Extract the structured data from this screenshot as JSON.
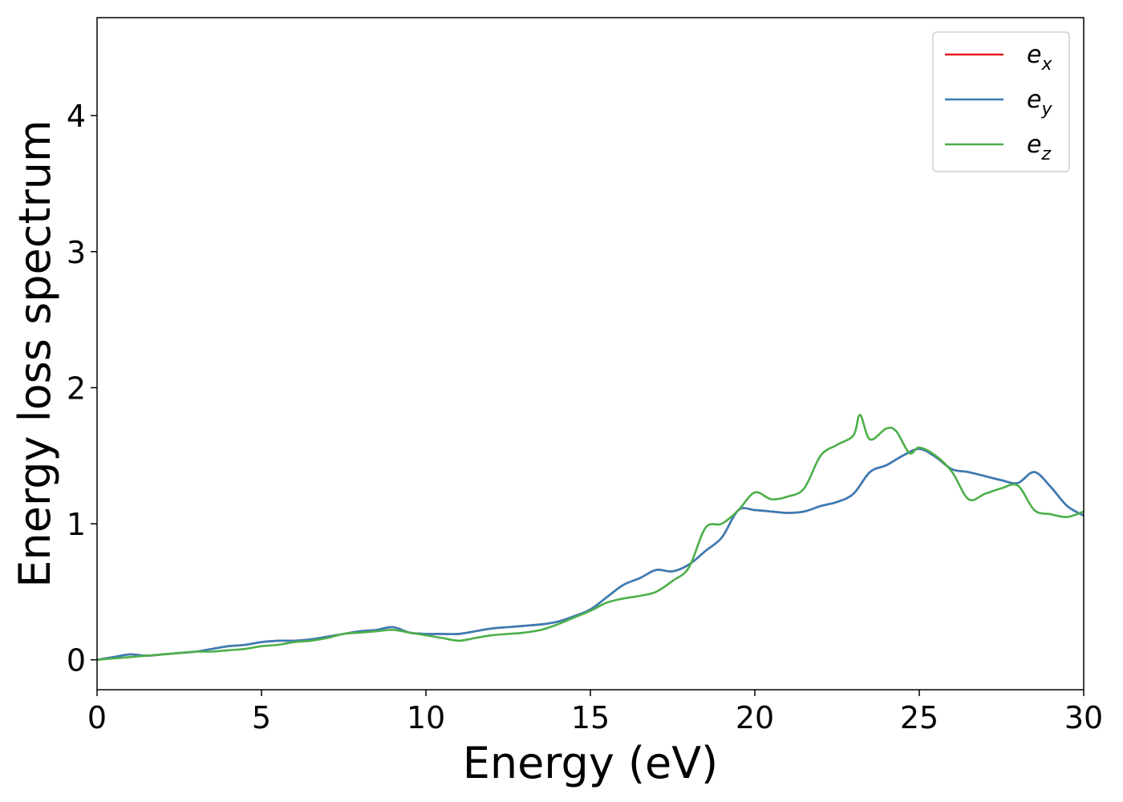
{
  "chart_data": {
    "type": "line",
    "xlabel": "Energy (eV)",
    "ylabel": "Energy loss spectrum",
    "xlim": [
      0,
      30
    ],
    "ylim": [
      -0.22,
      4.72
    ],
    "xticks": [
      0,
      5,
      10,
      15,
      20,
      25,
      30
    ],
    "yticks": [
      0,
      1,
      2,
      3,
      4
    ],
    "grid": false,
    "legend_position": "top-right",
    "series": [
      {
        "name": "e_x",
        "legend_base": "e",
        "legend_sub": "x",
        "color": "#e41a1c",
        "x": [
          0,
          0.5,
          1,
          1.5,
          2,
          2.5,
          3,
          3.5,
          4,
          4.5,
          5,
          5.5,
          6,
          6.5,
          7,
          7.5,
          8,
          8.5,
          9,
          9.5,
          10,
          10.5,
          11,
          11.5,
          12,
          12.5,
          13,
          13.5,
          14,
          14.5,
          15,
          15.5,
          16,
          16.5,
          17,
          17.5,
          18,
          18.5,
          19,
          19.5,
          20,
          20.5,
          21,
          21.5,
          22,
          22.5,
          23,
          23.5,
          24,
          24.5,
          25,
          25.5,
          26,
          26.5,
          27,
          27.5,
          28,
          28.5,
          29,
          29.5,
          30
        ],
        "values": [
          0,
          0.02,
          0.04,
          0.03,
          0.04,
          0.05,
          0.06,
          0.08,
          0.1,
          0.11,
          0.13,
          0.14,
          0.14,
          0.15,
          0.17,
          0.19,
          0.21,
          0.22,
          0.24,
          0.2,
          0.19,
          0.19,
          0.19,
          0.21,
          0.23,
          0.24,
          0.25,
          0.26,
          0.28,
          0.32,
          0.37,
          0.46,
          0.55,
          0.6,
          0.66,
          0.65,
          0.7,
          0.8,
          0.9,
          1.1,
          1.1,
          1.09,
          1.08,
          1.09,
          1.13,
          1.16,
          1.22,
          1.38,
          1.43,
          1.5,
          1.55,
          1.49,
          1.4,
          1.38,
          1.35,
          1.32,
          1.3,
          1.38,
          1.27,
          1.13,
          1.06
        ]
      },
      {
        "name": "e_y",
        "legend_base": "e",
        "legend_sub": "y",
        "color": "#377eb8",
        "x": [
          0,
          0.5,
          1,
          1.5,
          2,
          2.5,
          3,
          3.5,
          4,
          4.5,
          5,
          5.5,
          6,
          6.5,
          7,
          7.5,
          8,
          8.5,
          9,
          9.5,
          10,
          10.5,
          11,
          11.5,
          12,
          12.5,
          13,
          13.5,
          14,
          14.5,
          15,
          15.5,
          16,
          16.5,
          17,
          17.5,
          18,
          18.5,
          19,
          19.5,
          20,
          20.5,
          21,
          21.5,
          22,
          22.5,
          23,
          23.5,
          24,
          24.5,
          25,
          25.5,
          26,
          26.5,
          27,
          27.5,
          28,
          28.5,
          29,
          29.5,
          30
        ],
        "values": [
          0,
          0.02,
          0.04,
          0.03,
          0.04,
          0.05,
          0.06,
          0.08,
          0.1,
          0.11,
          0.13,
          0.14,
          0.14,
          0.15,
          0.17,
          0.19,
          0.21,
          0.22,
          0.24,
          0.2,
          0.19,
          0.19,
          0.19,
          0.21,
          0.23,
          0.24,
          0.25,
          0.26,
          0.28,
          0.32,
          0.37,
          0.46,
          0.55,
          0.6,
          0.66,
          0.65,
          0.7,
          0.8,
          0.9,
          1.1,
          1.1,
          1.09,
          1.08,
          1.09,
          1.13,
          1.16,
          1.22,
          1.38,
          1.43,
          1.5,
          1.55,
          1.49,
          1.4,
          1.38,
          1.35,
          1.32,
          1.3,
          1.38,
          1.27,
          1.13,
          1.06
        ]
      },
      {
        "name": "e_z",
        "legend_base": "e",
        "legend_sub": "z",
        "color": "#4daf4a",
        "x": [
          0,
          0.5,
          1,
          1.5,
          2,
          2.5,
          3,
          3.5,
          4,
          4.5,
          5,
          5.5,
          6,
          6.5,
          7,
          7.5,
          8,
          8.5,
          9,
          9.5,
          10,
          10.5,
          11,
          11.5,
          12,
          12.5,
          13,
          13.5,
          14,
          14.5,
          15,
          15.5,
          16,
          16.5,
          17,
          17.5,
          18,
          18.5,
          19,
          19.5,
          20,
          20.5,
          21,
          21.5,
          22,
          22.5,
          23,
          23.2,
          23.5,
          24,
          24.3,
          24.7,
          25,
          25.5,
          26,
          26.5,
          27,
          27.5,
          28,
          28.5,
          29,
          29.5,
          30
        ],
        "values": [
          0,
          0.01,
          0.02,
          0.03,
          0.04,
          0.05,
          0.06,
          0.06,
          0.07,
          0.08,
          0.1,
          0.11,
          0.13,
          0.14,
          0.16,
          0.19,
          0.2,
          0.21,
          0.22,
          0.2,
          0.18,
          0.16,
          0.14,
          0.16,
          0.18,
          0.19,
          0.2,
          0.22,
          0.26,
          0.31,
          0.36,
          0.42,
          0.45,
          0.47,
          0.5,
          0.58,
          0.68,
          0.97,
          1.0,
          1.1,
          1.23,
          1.18,
          1.2,
          1.26,
          1.5,
          1.58,
          1.65,
          1.8,
          1.62,
          1.7,
          1.68,
          1.52,
          1.56,
          1.5,
          1.38,
          1.18,
          1.22,
          1.26,
          1.28,
          1.1,
          1.07,
          1.05,
          1.09
        ]
      }
    ]
  }
}
